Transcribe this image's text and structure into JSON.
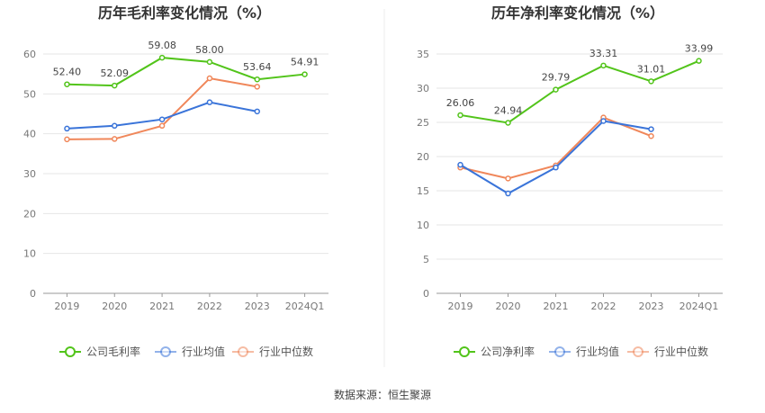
{
  "chart_data": [
    {
      "type": "line",
      "title": "历年毛利率变化情况（%）",
      "categories": [
        "2019",
        "2020",
        "2021",
        "2022",
        "2023",
        "2024Q1"
      ],
      "ylim": [
        0,
        60
      ],
      "yticks": [
        0,
        10,
        20,
        30,
        40,
        50,
        60
      ],
      "grid": true,
      "legend_position": "bottom",
      "series": [
        {
          "name": "公司毛利率",
          "color": "#52c41a",
          "values": [
            52.4,
            52.09,
            59.08,
            58.0,
            53.64,
            54.91
          ],
          "labels": [
            "52.40",
            "52.09",
            "59.08",
            "58.00",
            "53.64",
            "54.91"
          ]
        },
        {
          "name": "行业均值",
          "color": "#3a74d9",
          "values": [
            41.3,
            42.0,
            43.6,
            47.9,
            45.6,
            null
          ]
        },
        {
          "name": "行业中位数",
          "color": "#f0875a",
          "values": [
            38.6,
            38.7,
            42.0,
            53.9,
            51.8,
            null
          ]
        }
      ]
    },
    {
      "type": "line",
      "title": "历年净利率变化情况（%）",
      "categories": [
        "2019",
        "2020",
        "2021",
        "2022",
        "2023",
        "2024Q1"
      ],
      "ylim": [
        0,
        35
      ],
      "yticks": [
        0,
        5,
        10,
        15,
        20,
        25,
        30,
        35
      ],
      "grid": true,
      "legend_position": "bottom",
      "series": [
        {
          "name": "公司净利率",
          "color": "#52c41a",
          "values": [
            26.06,
            24.94,
            29.79,
            33.31,
            31.01,
            33.99
          ],
          "labels": [
            "26.06",
            "24.94",
            "29.79",
            "33.31",
            "31.01",
            "33.99"
          ]
        },
        {
          "name": "行业均值",
          "color": "#3a74d9",
          "values": [
            18.8,
            14.6,
            18.4,
            25.2,
            24.0,
            null
          ]
        },
        {
          "name": "行业中位数",
          "color": "#f0875a",
          "values": [
            18.4,
            16.8,
            18.7,
            25.7,
            23.0,
            null
          ]
        }
      ]
    }
  ],
  "footer": {
    "source": "数据来源：恒生聚源"
  }
}
